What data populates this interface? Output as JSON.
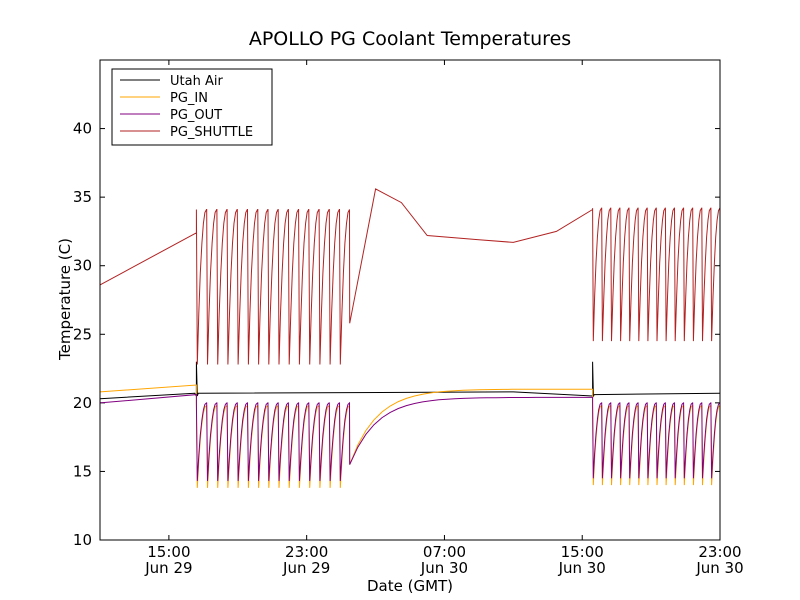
{
  "chart_data": {
    "type": "line",
    "title": "APOLLO PG Coolant Temperatures",
    "xlabel": "Date (GMT)",
    "ylabel": "Temperature (C)",
    "xlim": [
      11.0,
      47.0
    ],
    "ylim": [
      10,
      45
    ],
    "yticks": [
      {
        "value": 10,
        "label": "10"
      },
      {
        "value": 15,
        "label": "15"
      },
      {
        "value": 20,
        "label": "20"
      },
      {
        "value": 25,
        "label": "25"
      },
      {
        "value": 30,
        "label": "30"
      },
      {
        "value": 35,
        "label": "35"
      },
      {
        "value": 40,
        "label": "40"
      }
    ],
    "xticks": [
      {
        "value": 15,
        "time": "15:00",
        "date": "Jun 29"
      },
      {
        "value": 23,
        "time": "23:00",
        "date": "Jun 29"
      },
      {
        "value": 31,
        "time": "07:00",
        "date": "Jun 30"
      },
      {
        "value": 39,
        "time": "15:00",
        "date": "Jun 30"
      },
      {
        "value": 47,
        "time": "23:00",
        "date": "Jun 30"
      }
    ],
    "x_units": "hours since 00:00 Jun 29 (GMT)",
    "legend_position": "top-left",
    "series": [
      {
        "name": "Utah Air",
        "color": "#000000",
        "events": [
          {
            "type": "flat",
            "x0": 11.0,
            "x1": 16.5,
            "y0": 20.3,
            "y1": 20.7
          },
          {
            "type": "spike",
            "x": 16.6,
            "peak": 23.0,
            "base": 20.5
          },
          {
            "type": "flat",
            "x0": 16.7,
            "x1": 35.0,
            "y0": 20.7,
            "y1": 20.8
          },
          {
            "type": "spike",
            "x": 39.6,
            "peak": 23.0,
            "base": 20.5
          },
          {
            "type": "flat",
            "x0": 39.7,
            "x1": 47.0,
            "y0": 20.6,
            "y1": 20.7
          }
        ]
      },
      {
        "name": "PG_IN",
        "color": "#ffa500",
        "segments": [
          {
            "phase": "steady",
            "x0": 11.0,
            "x1": 16.6,
            "y0": 20.8,
            "y1": 21.3
          },
          {
            "phase": "cycling",
            "x0": 16.6,
            "x1": 25.5,
            "low": 13.8,
            "high": 19.8,
            "n": 15
          },
          {
            "phase": "recovery",
            "x0": 25.5,
            "x1": 39.6,
            "y_start": 15.5,
            "y_end": 21.0
          },
          {
            "phase": "cycling",
            "x0": 39.6,
            "x1": 47.0,
            "low": 14.0,
            "high": 19.8,
            "n": 14
          }
        ]
      },
      {
        "name": "PG_OUT",
        "color": "#800080",
        "segments": [
          {
            "phase": "steady",
            "x0": 11.0,
            "x1": 16.6,
            "y0": 20.0,
            "y1": 20.6
          },
          {
            "phase": "cycling",
            "x0": 16.6,
            "x1": 25.5,
            "low": 14.3,
            "high": 20.0,
            "n": 15
          },
          {
            "phase": "recovery",
            "x0": 25.5,
            "x1": 39.6,
            "y_start": 15.5,
            "y_end": 20.4
          },
          {
            "phase": "cycling",
            "x0": 39.6,
            "x1": 47.0,
            "low": 14.5,
            "high": 20.0,
            "n": 14
          }
        ]
      },
      {
        "name": "PG_SHUTTLE",
        "color": "#b22222",
        "segments": [
          {
            "phase": "warmup",
            "x0": 11.0,
            "x1": 16.6,
            "y0": 28.6,
            "y1": 32.4
          },
          {
            "phase": "cycling",
            "x0": 16.6,
            "x1": 25.5,
            "low": 22.8,
            "high": 34.1,
            "n": 15
          },
          {
            "phase": "drift",
            "points": [
              [
                25.5,
                25.8
              ],
              [
                27.0,
                35.6
              ],
              [
                28.5,
                34.6
              ],
              [
                30.0,
                32.2
              ],
              [
                33.0,
                31.9
              ],
              [
                35.0,
                31.7
              ],
              [
                37.5,
                32.5
              ],
              [
                39.6,
                34.1
              ]
            ]
          },
          {
            "phase": "cycling",
            "x0": 39.6,
            "x1": 47.0,
            "low": 24.5,
            "high": 34.2,
            "n": 14
          }
        ]
      }
    ]
  }
}
